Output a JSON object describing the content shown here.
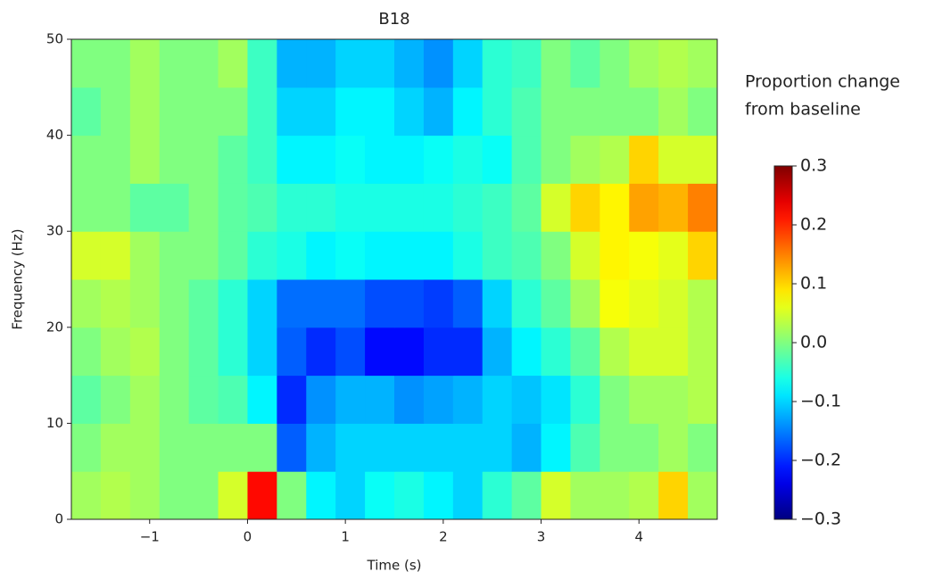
{
  "chart_data": {
    "type": "heatmap",
    "title": "B18",
    "xlabel": "Time (s)",
    "ylabel": "Frequency (Hz)",
    "colorbar_label": [
      "Proportion change",
      "from baseline"
    ],
    "colormap": "jet",
    "x": [
      -1.8,
      -1.5,
      -1.2,
      -0.9,
      -0.6,
      -0.3,
      0,
      0.3,
      0.6,
      0.9,
      1.2,
      1.5,
      1.8,
      2.1,
      2.4,
      2.7,
      3.0,
      3.3,
      3.6,
      3.9,
      4.2,
      4.5,
      4.8
    ],
    "y": [
      0,
      5,
      10,
      15,
      20,
      25,
      30,
      35,
      40,
      45,
      50
    ],
    "values": [
      [
        0.02,
        0.03,
        0.02,
        0.0,
        0.0,
        0.05,
        0.22,
        0.0,
        -0.08,
        -0.1,
        -0.07,
        -0.06,
        -0.08,
        -0.1,
        -0.05,
        -0.02,
        0.05,
        0.02,
        0.02,
        0.03,
        0.1,
        0.02
      ],
      [
        0.0,
        0.02,
        0.02,
        0.0,
        0.0,
        0.0,
        0.0,
        -0.17,
        -0.12,
        -0.1,
        -0.1,
        -0.1,
        -0.1,
        -0.1,
        -0.1,
        -0.12,
        -0.08,
        -0.03,
        0.0,
        0.0,
        0.02,
        0.0
      ],
      [
        -0.02,
        0.0,
        0.02,
        0.0,
        -0.02,
        -0.03,
        -0.08,
        -0.2,
        -0.14,
        -0.12,
        -0.12,
        -0.14,
        -0.13,
        -0.12,
        -0.1,
        -0.11,
        -0.09,
        -0.05,
        0.0,
        0.02,
        0.02,
        0.03
      ],
      [
        0.0,
        0.02,
        0.03,
        0.0,
        -0.02,
        -0.05,
        -0.1,
        -0.17,
        -0.2,
        -0.18,
        -0.22,
        -0.22,
        -0.2,
        -0.2,
        -0.12,
        -0.08,
        -0.05,
        -0.02,
        0.03,
        0.05,
        0.05,
        0.03
      ],
      [
        0.02,
        0.03,
        0.02,
        0.0,
        -0.02,
        -0.05,
        -0.1,
        -0.16,
        -0.16,
        -0.16,
        -0.18,
        -0.18,
        -0.19,
        -0.17,
        -0.1,
        -0.05,
        -0.02,
        0.02,
        0.07,
        0.06,
        0.05,
        0.03
      ],
      [
        0.05,
        0.05,
        0.02,
        0.0,
        0.0,
        -0.02,
        -0.05,
        -0.06,
        -0.08,
        -0.07,
        -0.08,
        -0.08,
        -0.08,
        -0.06,
        -0.04,
        -0.03,
        0.0,
        0.05,
        0.08,
        0.07,
        0.06,
        0.1
      ],
      [
        0.0,
        0.0,
        -0.02,
        -0.02,
        0.0,
        -0.02,
        -0.03,
        -0.05,
        -0.05,
        -0.06,
        -0.06,
        -0.06,
        -0.06,
        -0.05,
        -0.04,
        -0.02,
        0.05,
        0.1,
        0.08,
        0.13,
        0.12,
        0.15
      ],
      [
        0.0,
        0.0,
        0.02,
        0.0,
        0.0,
        -0.02,
        -0.04,
        -0.08,
        -0.08,
        -0.07,
        -0.08,
        -0.08,
        -0.07,
        -0.06,
        -0.07,
        -0.03,
        0.0,
        0.02,
        0.03,
        0.1,
        0.05,
        0.05
      ],
      [
        -0.02,
        0.0,
        0.02,
        0.0,
        0.0,
        0.0,
        -0.04,
        -0.1,
        -0.1,
        -0.08,
        -0.08,
        -0.1,
        -0.12,
        -0.08,
        -0.05,
        -0.03,
        0.0,
        0.0,
        0.0,
        0.0,
        0.02,
        0.0
      ],
      [
        0.0,
        0.0,
        0.02,
        0.0,
        0.0,
        0.02,
        -0.04,
        -0.12,
        -0.12,
        -0.1,
        -0.1,
        -0.12,
        -0.14,
        -0.1,
        -0.05,
        -0.04,
        0.0,
        -0.02,
        0.0,
        0.02,
        0.03,
        0.02
      ]
    ],
    "xlim": [
      -1.8,
      4.8
    ],
    "ylim": [
      0,
      50
    ],
    "xticks": [
      {
        "value": -1,
        "label": "−1"
      },
      0,
      1,
      2,
      3,
      4
    ],
    "yticks": [
      0,
      10,
      20,
      30,
      40,
      50
    ],
    "clim": [
      -0.3,
      0.3
    ],
    "cticks": [
      {
        "value": -0.3,
        "label": "−0.3"
      },
      {
        "value": -0.2,
        "label": "−0.2"
      },
      {
        "value": -0.1,
        "label": "−0.1"
      },
      0.3,
      0.2,
      0.1,
      {
        "value": 0.0,
        "label": "0.0"
      }
    ]
  }
}
